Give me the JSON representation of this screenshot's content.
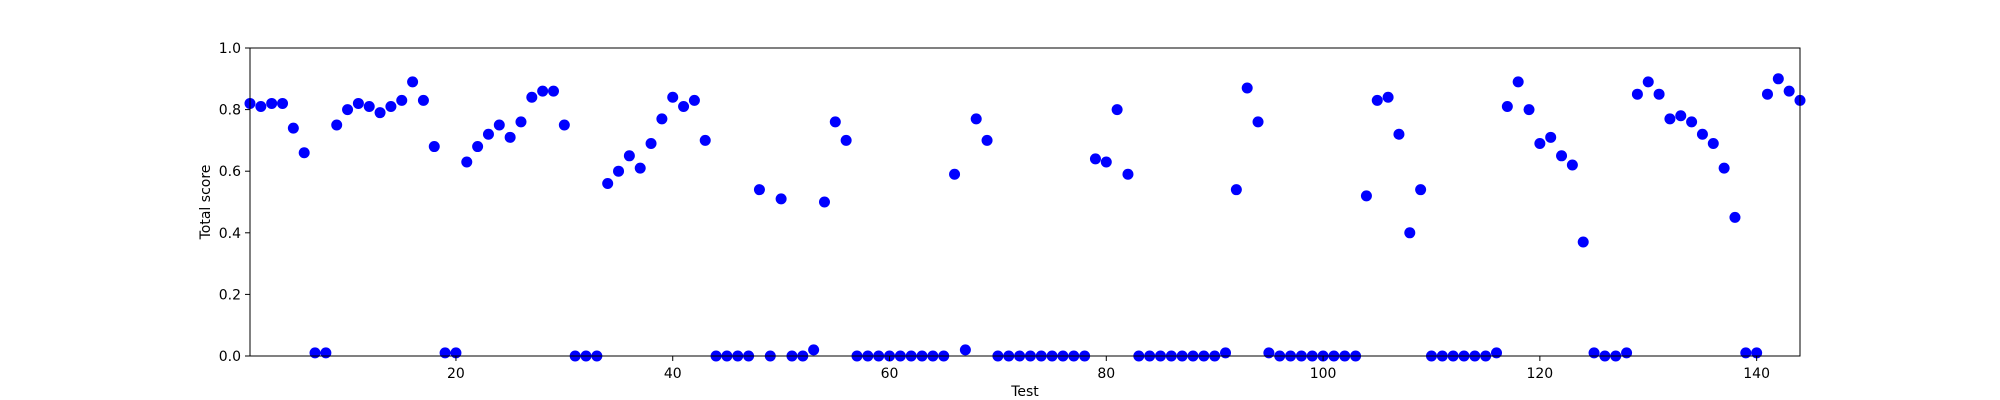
{
  "chart_data": {
    "type": "scatter",
    "title": "",
    "xlabel": "Test",
    "ylabel": "Total score",
    "xlim": [
      1,
      144
    ],
    "ylim": [
      0.0,
      1.0
    ],
    "x_ticks": [
      20,
      40,
      60,
      80,
      100,
      120,
      140
    ],
    "x_tick_labels": [
      "20",
      "40",
      "60",
      "80",
      "100",
      "120",
      "140"
    ],
    "y_ticks": [
      0.0,
      0.2,
      0.4,
      0.6,
      0.8,
      1.0
    ],
    "y_tick_labels": [
      "0.0",
      "0.2",
      "0.4",
      "0.6",
      "0.8",
      "1.0"
    ],
    "grid": false,
    "marker_color": "#0000ff",
    "series": [
      {
        "x": [
          1,
          2,
          3,
          4,
          5,
          6,
          7,
          8,
          9,
          10,
          11,
          12,
          13,
          14,
          15,
          16,
          17,
          18,
          19,
          20,
          21,
          22,
          23,
          24,
          25,
          26,
          27,
          28,
          29,
          30,
          31,
          32,
          33,
          34,
          35,
          36,
          37,
          38,
          39,
          40,
          41,
          42,
          43,
          44,
          45,
          46,
          47,
          48,
          49,
          50,
          51,
          52,
          53,
          54,
          55,
          56,
          57,
          58,
          59,
          60,
          61,
          62,
          63,
          64,
          65,
          66,
          67,
          68,
          69,
          70,
          71,
          72,
          73,
          74,
          75,
          76,
          77,
          78,
          79,
          80,
          81,
          82,
          83,
          84,
          85,
          86,
          87,
          88,
          89,
          90,
          91,
          92,
          93,
          94,
          95,
          96,
          97,
          98,
          99,
          100,
          101,
          102,
          103,
          104,
          105,
          106,
          107,
          108,
          109,
          110,
          111,
          112,
          113,
          114,
          115,
          116,
          117,
          118,
          119,
          120,
          121,
          122,
          123,
          124,
          125,
          126,
          127,
          128,
          129,
          130,
          131,
          132,
          133,
          134,
          135,
          136,
          137,
          138,
          139,
          140,
          141,
          142,
          143,
          144
        ],
        "y": [
          0.82,
          0.81,
          0.82,
          0.82,
          0.74,
          0.66,
          0.01,
          0.01,
          0.75,
          0.8,
          0.82,
          0.81,
          0.79,
          0.81,
          0.83,
          0.89,
          0.83,
          0.68,
          0.01,
          0.01,
          0.63,
          0.68,
          0.72,
          0.75,
          0.71,
          0.76,
          0.84,
          0.86,
          0.86,
          0.75,
          0.0,
          0.0,
          0.0,
          0.56,
          0.6,
          0.65,
          0.61,
          0.69,
          0.77,
          0.84,
          0.81,
          0.83,
          0.7,
          0.0,
          0.0,
          0.0,
          0.0,
          0.54,
          0.0,
          0.51,
          0.0,
          0.0,
          0.02,
          0.5,
          0.76,
          0.7,
          0.0,
          0.0,
          0.0,
          0.0,
          0.0,
          0.0,
          0.0,
          0.0,
          0.0,
          0.59,
          0.02,
          0.77,
          0.7,
          0.0,
          0.0,
          0.0,
          0.0,
          0.0,
          0.0,
          0.0,
          0.0,
          0.0,
          0.64,
          0.63,
          0.8,
          0.59,
          0.0,
          0.0,
          0.0,
          0.0,
          0.0,
          0.0,
          0.0,
          0.0,
          0.01,
          0.54,
          0.87,
          0.76,
          0.01,
          0.0,
          0.0,
          0.0,
          0.0,
          0.0,
          0.0,
          0.0,
          0.0,
          0.52,
          0.83,
          0.84,
          0.72,
          0.4,
          0.54,
          0.0,
          0.0,
          0.0,
          0.0,
          0.0,
          0.0,
          0.01,
          0.81,
          0.89,
          0.8,
          0.69,
          0.71,
          0.65,
          0.62,
          0.37,
          0.01,
          0.0,
          0.0,
          0.01,
          0.85,
          0.89,
          0.85,
          0.77,
          0.78,
          0.76,
          0.72,
          0.69,
          0.61,
          0.45,
          0.01,
          0.01,
          0.85,
          0.9,
          0.86,
          0.83
        ]
      }
    ]
  }
}
